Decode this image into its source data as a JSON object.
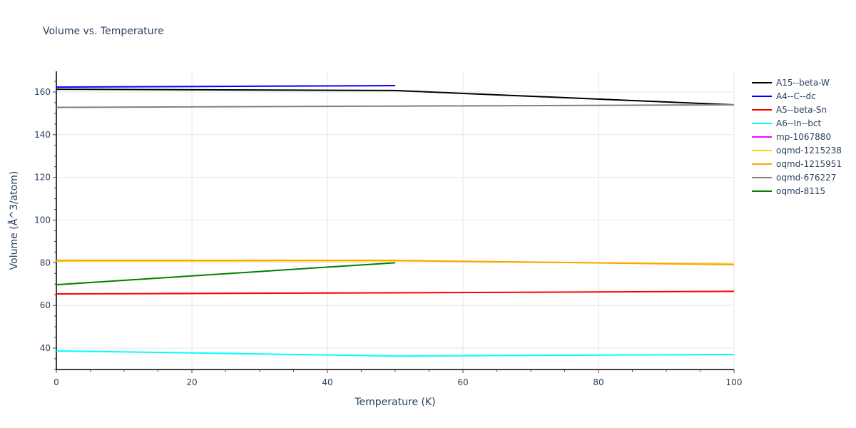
{
  "title": "Volume vs. Temperature",
  "chart_data": {
    "type": "line",
    "title": "Volume vs. Temperature",
    "xlabel": "Temperature (K)",
    "ylabel": "Volume (Å^3/atom)",
    "xlim": [
      0,
      100
    ],
    "ylim": [
      29,
      170
    ],
    "xticks": [
      0,
      20,
      40,
      60,
      80,
      100
    ],
    "yticks": [
      40,
      60,
      80,
      100,
      120,
      140,
      160
    ],
    "grid": true,
    "legend_position": "right",
    "series": [
      {
        "name": "A15--beta-W",
        "color": "#000000",
        "x": [
          0,
          50,
          100
        ],
        "y": [
          161.3,
          160.7,
          154.0
        ]
      },
      {
        "name": "A4--C--dc",
        "color": "#0000ff",
        "x": [
          0,
          50
        ],
        "y": [
          162.3,
          163.0
        ]
      },
      {
        "name": "A5--beta-Sn",
        "color": "#ff0000",
        "x": [
          0,
          50,
          100
        ],
        "y": [
          65.4,
          65.9,
          66.6
        ]
      },
      {
        "name": "A6--In--bct",
        "color": "#00ffff",
        "x": [
          0,
          50,
          100
        ],
        "y": [
          38.7,
          36.3,
          37.0
        ]
      },
      {
        "name": "mp-1067880",
        "color": "#ff00ff",
        "x": [],
        "y": []
      },
      {
        "name": "oqmd-1215238",
        "color": "#ffd700",
        "x": [
          0,
          50,
          100
        ],
        "y": [
          80.8,
          80.9,
          79.4
        ]
      },
      {
        "name": "oqmd-1215951",
        "color": "#ffa500",
        "x": [
          0,
          50,
          100
        ],
        "y": [
          81.1,
          81.1,
          79.1
        ]
      },
      {
        "name": "oqmd-676227",
        "color": "#808080",
        "x": [
          0,
          50,
          100
        ],
        "y": [
          152.8,
          153.4,
          154.0
        ]
      },
      {
        "name": "oqmd-8115",
        "color": "#008000",
        "x": [
          0,
          50
        ],
        "y": [
          69.7,
          80.0
        ]
      }
    ]
  }
}
